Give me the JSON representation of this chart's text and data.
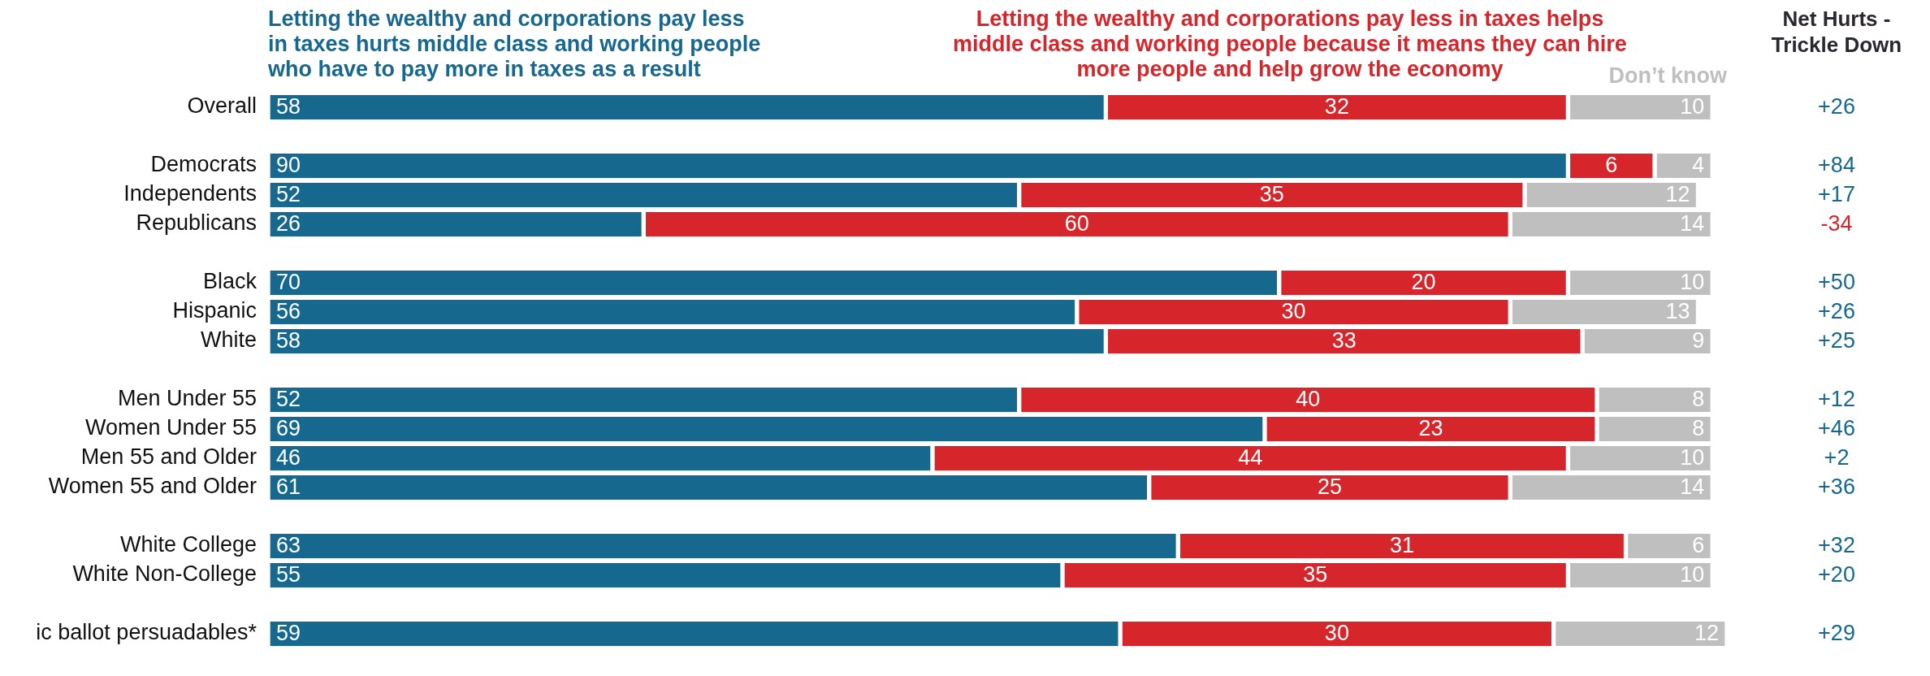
{
  "chart_data": {
    "type": "bar",
    "orientation": "horizontal",
    "stacked": true,
    "data_labels": true,
    "tick_labels": "y",
    "xlim": [
      0,
      101
    ],
    "categories": [
      "Overall",
      null,
      "Democrats",
      "Independents",
      "Republicans",
      null,
      "Black",
      "Hispanic",
      "White",
      null,
      "Men Under 55",
      "Women Under 55",
      "Men 55 and Older",
      "Women 55 and Older",
      null,
      "White College",
      "White Non-College",
      null,
      "ic ballot persuadables*"
    ],
    "series": [
      {
        "name": "Letting the wealthy and corporations pay less in taxes hurts middle class and working people who have to pay more in taxes as a result",
        "color": "#16688f",
        "values": [
          58,
          null,
          90,
          52,
          26,
          null,
          70,
          56,
          58,
          null,
          52,
          69,
          46,
          61,
          null,
          63,
          55,
          null,
          59
        ]
      },
      {
        "name": "Letting the wealthy and corporations pay less in taxes helps middle class and working people because it means they can hire more people and help grow the economy",
        "color": "#d7262b",
        "values": [
          32,
          null,
          6,
          35,
          60,
          null,
          20,
          30,
          33,
          null,
          40,
          23,
          44,
          25,
          null,
          31,
          35,
          null,
          30
        ]
      },
      {
        "name": "Don’t know",
        "color": "#bfbfbf",
        "values": [
          10,
          null,
          4,
          12,
          14,
          null,
          10,
          13,
          9,
          null,
          8,
          8,
          10,
          14,
          null,
          6,
          10,
          null,
          12
        ]
      }
    ],
    "annotations": [
      "Net Hurts - Trickle Down",
      "+26",
      "+84",
      "+17",
      "-34",
      "+50",
      "+26",
      "+25",
      "+12",
      "+46",
      "+2",
      "+36",
      "+32",
      "+20",
      "+29"
    ]
  }
}
